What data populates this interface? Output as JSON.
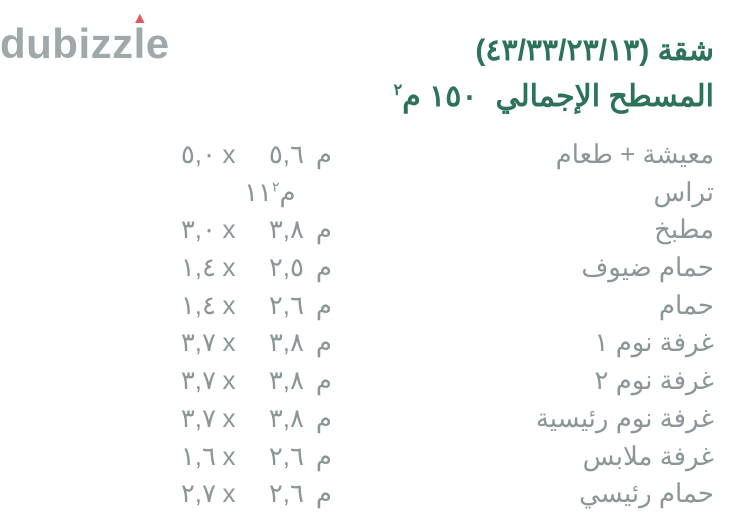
{
  "watermark": {
    "text": "dubizzle",
    "main_color": "#9fa9ab",
    "accent_color": "#e35b5f"
  },
  "header": {
    "title": "شقة (٤٣/٣٣/٢٣/١٣)",
    "subtitle_label": "المسطح الإجمالي",
    "subtitle_value": "١٥٠ م",
    "subtitle_sup": "٢",
    "color": "#2d735c",
    "fontsize": 30,
    "fontweight": 700
  },
  "table": {
    "text_color": "#8a9699",
    "fontsize": 26,
    "unit": "م",
    "unit_sq": "م٢",
    "x_sep": "x",
    "rows": [
      {
        "label": "معيشة + طعام",
        "d1": "٥,٠",
        "d2": "٥,٦",
        "type": "dim"
      },
      {
        "label": "تراس",
        "val": "١١",
        "type": "area"
      },
      {
        "label": "مطبخ",
        "d1": "٣,٠",
        "d2": "٣,٨",
        "type": "dim"
      },
      {
        "label": "حمام ضيوف",
        "d1": "١,٤",
        "d2": "٢,٥",
        "type": "dim"
      },
      {
        "label": "حمام",
        "d1": "١,٤",
        "d2": "٢,٦",
        "type": "dim"
      },
      {
        "label": "غرفة نوم ١",
        "d1": "٣,٧",
        "d2": "٣,٨",
        "type": "dim"
      },
      {
        "label": "غرفة نوم ٢",
        "d1": "٣,٧",
        "d2": "٣,٨",
        "type": "dim"
      },
      {
        "label": "غرفة نوم رئيسية",
        "d1": "٣,٧",
        "d2": "٣,٨",
        "type": "dim"
      },
      {
        "label": "غرفة ملابس",
        "d1": "١,٦",
        "d2": "٢,٦",
        "type": "dim"
      },
      {
        "label": "حمام رئيسي",
        "d1": "٢,٧",
        "d2": "٢,٦",
        "type": "dim"
      }
    ]
  }
}
